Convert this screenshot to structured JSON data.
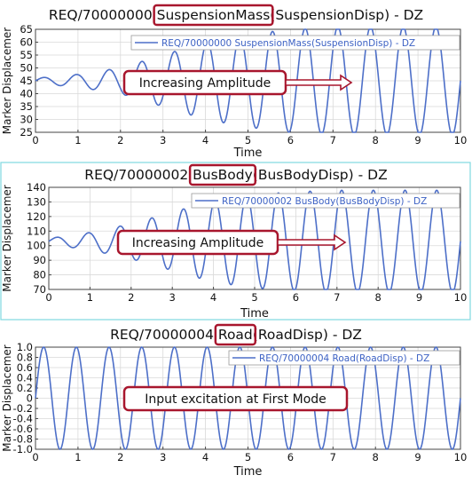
{
  "chart_data": [
    {
      "type": "line",
      "title_prefix": "REQ/70000000 ",
      "title_highlight": "SuspensionMass",
      "title_suffix": "(SuspensionDisp) - DZ",
      "xlabel": "Time",
      "ylabel": "Marker Displacemer",
      "xlim": [
        0,
        10
      ],
      "ylim": [
        25,
        65
      ],
      "xticks": [
        "0",
        "1",
        "2",
        "3",
        "4",
        "5",
        "6",
        "7",
        "8",
        "9",
        "10"
      ],
      "yticks": [
        "25",
        "30",
        "35",
        "40",
        "45",
        "50",
        "55",
        "60",
        "65"
      ],
      "grid": true,
      "series": [
        {
          "name": "REQ/70000000 SuspensionMass(SuspensionDisp) - DZ",
          "color": "#4d6fc8",
          "center": 45,
          "freq": 1.3,
          "amp_points": [
            [
              0,
              1
            ],
            [
              1,
              2.5
            ],
            [
              2,
              5
            ],
            [
              3,
              10
            ],
            [
              4,
              15
            ],
            [
              5,
              18
            ],
            [
              6,
              20
            ],
            [
              7,
              21
            ],
            [
              8,
              21
            ],
            [
              9,
              21
            ],
            [
              10,
              21
            ]
          ]
        }
      ],
      "legend_position": "top-right",
      "annotation": "Increasing Amplitude"
    },
    {
      "type": "line",
      "title_prefix": "REQ/70000002 ",
      "title_highlight": "BusBody",
      "title_suffix": "(BusBodyDisp) - DZ",
      "xlabel": "Time",
      "ylabel": "Marker Displacemer",
      "xlim": [
        0,
        10
      ],
      "ylim": [
        70,
        140
      ],
      "xticks": [
        "0",
        "1",
        "2",
        "3",
        "4",
        "5",
        "6",
        "7",
        "8",
        "9",
        "10"
      ],
      "yticks": [
        "70",
        "80",
        "90",
        "100",
        "110",
        "120",
        "130",
        "140"
      ],
      "grid": true,
      "series": [
        {
          "name": "REQ/70000002 BusBody(BusBodyDisp) - DZ",
          "color": "#4d6fc8",
          "center": 103,
          "freq": 1.3,
          "amp_points": [
            [
              0,
              2
            ],
            [
              1,
              6
            ],
            [
              2,
              12
            ],
            [
              3,
              20
            ],
            [
              4,
              28
            ],
            [
              5,
              32
            ],
            [
              6,
              34
            ],
            [
              7,
              35
            ],
            [
              8,
              35
            ],
            [
              9,
              35
            ],
            [
              10,
              35
            ]
          ]
        }
      ],
      "legend_position": "top-right",
      "annotation": "Increasing Amplitude"
    },
    {
      "type": "line",
      "title_prefix": "REQ/70000004 ",
      "title_highlight": "Road",
      "title_suffix": "(RoadDisp) - DZ",
      "xlabel": "Time",
      "ylabel": "Marker Displacemer",
      "xlim": [
        0,
        10
      ],
      "ylim": [
        -1.0,
        1.0
      ],
      "xticks": [
        "0",
        "1",
        "2",
        "3",
        "4",
        "5",
        "6",
        "7",
        "8",
        "9",
        "10"
      ],
      "yticks": [
        "-1.0",
        "-0.8",
        "-0.6",
        "-0.4",
        "-0.2",
        "0",
        "0.2",
        "0.4",
        "0.6",
        "0.8",
        "1.0"
      ],
      "grid": true,
      "series": [
        {
          "name": "REQ/70000004 Road(RoadDisp) - DZ",
          "color": "#4d6fc8",
          "center": 0,
          "freq": 1.3,
          "amp_points": [
            [
              0,
              1
            ],
            [
              10,
              1
            ]
          ]
        }
      ],
      "legend_position": "top-right",
      "annotation": "Input excitation at First Mode"
    }
  ]
}
